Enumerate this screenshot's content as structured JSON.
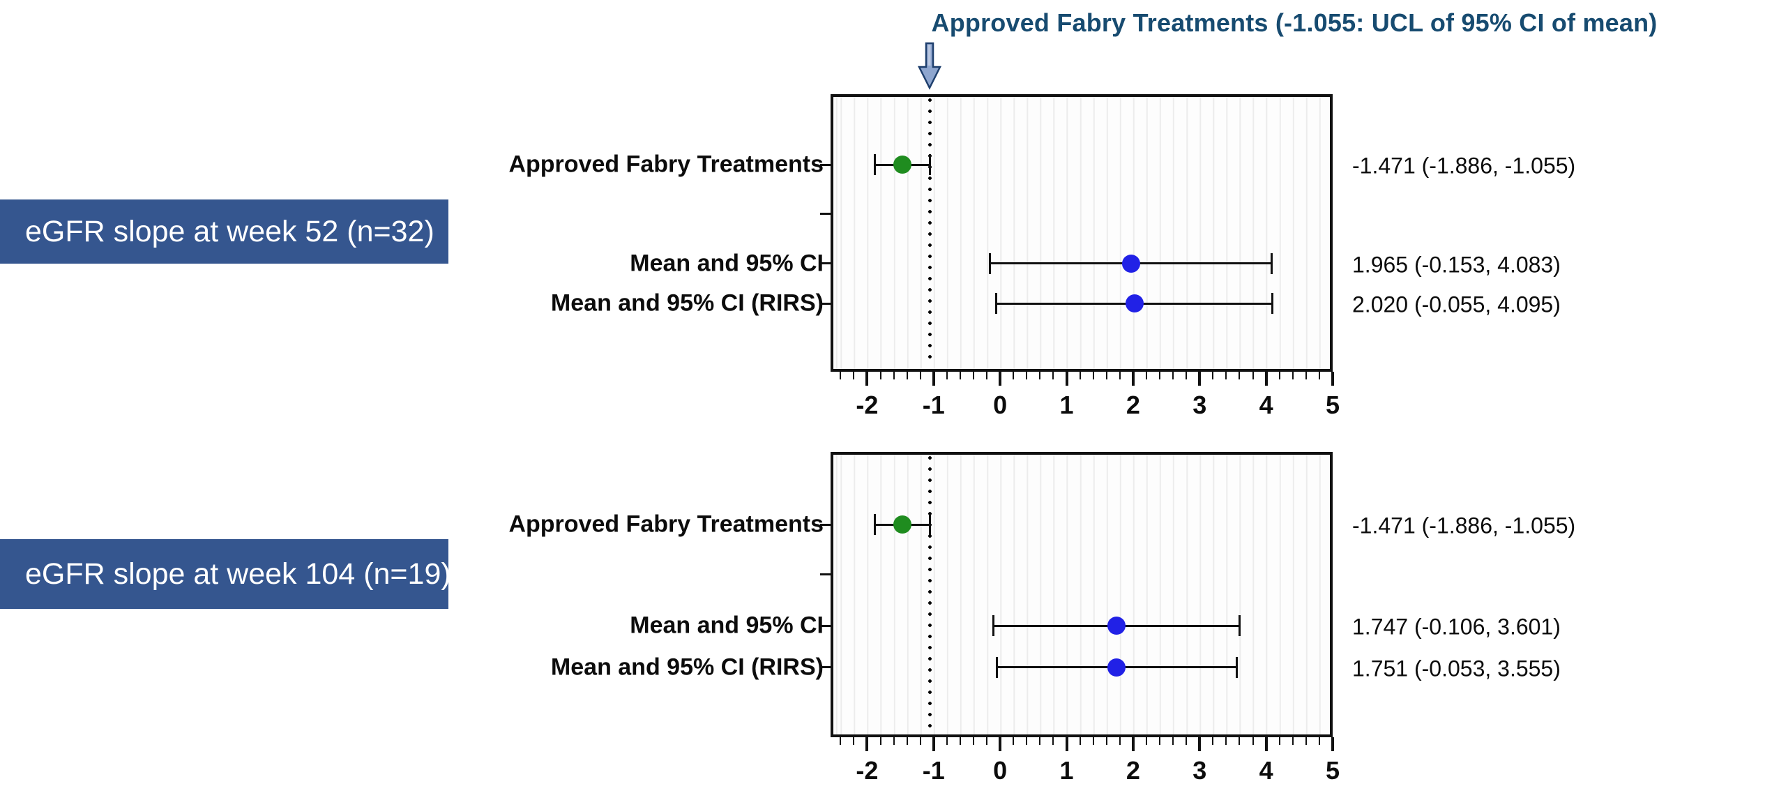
{
  "title": {
    "text": "Approved Fabry Treatments (-1.055: UCL of 95% CI of mean)"
  },
  "colors": {
    "title_navy": "#174b70",
    "badge_blue": "#35568f",
    "marker_green": "#1f8c1f",
    "marker_blue": "#2121e6",
    "axis_black": "#111111",
    "gridline": "#ececec",
    "reference_line": "#000000",
    "arrow_fill": "#8ea6cf",
    "arrow_outline": "#1e3f6d"
  },
  "chart_data": [
    {
      "type": "forest",
      "panel_label": "eGFR slope at week 52 (n=32)",
      "categories": [
        "Approved Fabry Treatments",
        "Mean and 95% CI",
        "Mean and 95% CI (RIRS)"
      ],
      "xlim": [
        -2.55,
        5.0
      ],
      "x_ticks": [
        -2,
        -1,
        0,
        1,
        2,
        3,
        4,
        5
      ],
      "minor_tick_step": 0.2,
      "grid": true,
      "legend": "none",
      "reference_line_x": -1.055,
      "row_ticks": [
        0.255,
        0.43,
        0.61,
        0.755
      ],
      "points": [
        {
          "category": "Approved Fabry Treatments",
          "mean": -1.471,
          "ci_low": -1.886,
          "ci_high": -1.055,
          "value_label": "-1.471 (-1.886, -1.055)",
          "marker": "green",
          "row_frac": 0.255
        },
        {
          "category": "Mean and 95% CI",
          "mean": 1.965,
          "ci_low": -0.153,
          "ci_high": 4.083,
          "value_label": "1.965 (-0.153, 4.083)",
          "marker": "blue",
          "row_frac": 0.61
        },
        {
          "category": "Mean and 95% CI (RIRS)",
          "mean": 2.02,
          "ci_low": -0.055,
          "ci_high": 4.095,
          "value_label": "2.020 (-0.055, 4.095)",
          "marker": "blue",
          "row_frac": 0.755
        }
      ]
    },
    {
      "type": "forest",
      "panel_label": "eGFR slope at week 104 (n=19)",
      "categories": [
        "Approved Fabry Treatments",
        "Mean and 95% CI",
        "Mean and 95% CI (RIRS)"
      ],
      "xlim": [
        -2.55,
        5.0
      ],
      "x_ticks": [
        -2,
        -1,
        0,
        1,
        2,
        3,
        4,
        5
      ],
      "minor_tick_step": 0.2,
      "grid": true,
      "legend": "none",
      "reference_line_x": -1.055,
      "row_ticks": [
        0.255,
        0.43,
        0.61,
        0.755
      ],
      "points": [
        {
          "category": "Approved Fabry Treatments",
          "mean": -1.471,
          "ci_low": -1.886,
          "ci_high": -1.055,
          "value_label": "-1.471 (-1.886, -1.055)",
          "marker": "green",
          "row_frac": 0.255
        },
        {
          "category": "Mean and 95% CI",
          "mean": 1.747,
          "ci_low": -0.106,
          "ci_high": 3.601,
          "value_label": "1.747 (-0.106, 3.601)",
          "marker": "blue",
          "row_frac": 0.61
        },
        {
          "category": "Mean and 95% CI (RIRS)",
          "mean": 1.751,
          "ci_low": -0.053,
          "ci_high": 3.555,
          "value_label": "1.751 (-0.053, 3.555)",
          "marker": "blue",
          "row_frac": 0.755
        }
      ]
    }
  ]
}
